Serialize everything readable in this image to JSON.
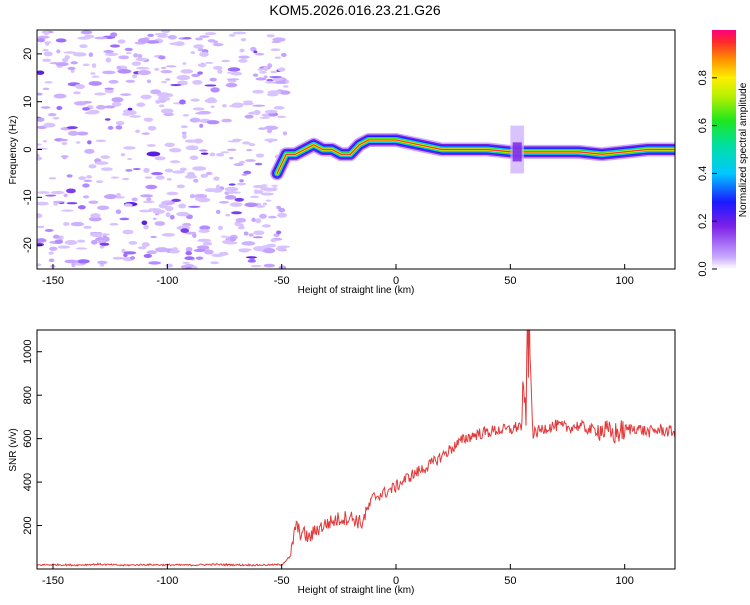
{
  "title": "KOM5.2026.016.23.21.G26",
  "chart_data": [
    {
      "type": "heatmap",
      "xlabel": "Height of straight line (km)",
      "ylabel": "Frequency (Hz)",
      "xlim": [
        -157,
        122
      ],
      "ylim": [
        -25,
        25
      ],
      "xticks": [
        -150,
        -100,
        -50,
        0,
        50,
        100
      ],
      "yticks": [
        -20,
        -10,
        0,
        10,
        20
      ],
      "noise_region_x": [
        -157,
        -48
      ],
      "signal_ridge": {
        "x": [
          -52,
          -48,
          -44,
          -40,
          -36,
          -32,
          -28,
          -24,
          -20,
          -16,
          -12,
          -8,
          -4,
          0,
          10,
          20,
          30,
          40,
          50,
          60,
          70,
          80,
          90,
          100,
          110,
          122
        ],
        "freq": [
          -5,
          -1,
          -1,
          0,
          1,
          0,
          0,
          -1,
          -1,
          1,
          2,
          2,
          2,
          2,
          1,
          0,
          0,
          0,
          -0.5,
          -0.5,
          -0.5,
          -0.5,
          -1,
          -0.5,
          0,
          0
        ]
      },
      "colorbar": {
        "label": "Normalized spectral amplitude",
        "range": [
          0,
          1
        ],
        "ticks": [
          "0.0",
          "0.2",
          "0.4",
          "0.6",
          "0.8"
        ]
      }
    },
    {
      "type": "line",
      "xlabel": "Height of straight line (km)",
      "ylabel": "SNR (v/v)",
      "xlim": [
        -157,
        122
      ],
      "ylim": [
        0,
        1100
      ],
      "xticks": [
        -150,
        -100,
        -50,
        0,
        50,
        100
      ],
      "yticks": [
        200,
        400,
        600,
        800,
        1000
      ],
      "color": "#e23a3a",
      "series": [
        {
          "name": "SNR",
          "x": [
            -157,
            -150,
            -140,
            -130,
            -120,
            -110,
            -100,
            -90,
            -80,
            -70,
            -60,
            -50,
            -46,
            -44,
            -42,
            -40,
            -38,
            -35,
            -30,
            -25,
            -20,
            -15,
            -10,
            -5,
            0,
            5,
            10,
            15,
            20,
            25,
            30,
            35,
            40,
            45,
            50,
            54,
            56,
            58,
            60,
            65,
            70,
            75,
            80,
            85,
            90,
            95,
            100,
            105,
            110,
            115,
            122
          ],
          "y": [
            18,
            20,
            18,
            22,
            17,
            20,
            19,
            18,
            21,
            19,
            18,
            20,
            60,
            200,
            170,
            160,
            140,
            180,
            210,
            230,
            240,
            210,
            330,
            350,
            380,
            420,
            450,
            480,
            520,
            560,
            600,
            620,
            630,
            640,
            640,
            660,
            650,
            1080,
            620,
            650,
            660,
            650,
            660,
            640,
            640,
            620,
            640,
            650,
            630,
            640,
            630
          ]
        }
      ]
    }
  ]
}
